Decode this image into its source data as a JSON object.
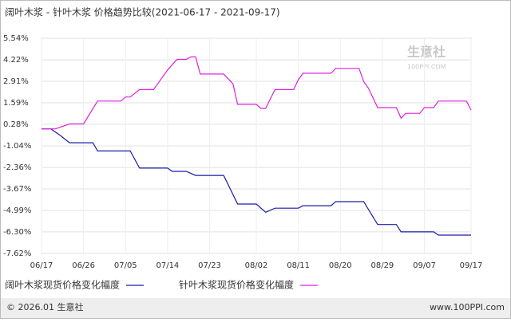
{
  "chart_data": {
    "type": "line",
    "title": "阔叶木浆 - 针叶木浆 价格趋势比较(2021-06-17 - 2021-09-17)",
    "watermark": "生意社",
    "watermark_sub": "100PPI.COM",
    "footer_left": "© 2026.01 生意社",
    "footer_right": "www.100PPI.com",
    "xlim": [
      "06/17",
      "09/17"
    ],
    "xticks": [
      "06/17",
      "06/26",
      "07/05",
      "07/14",
      "07/23",
      "08/02",
      "08/11",
      "08/20",
      "08/29",
      "09/07",
      "09/17"
    ],
    "ylim": [
      -7.62,
      5.54
    ],
    "yticks": [
      {
        "value": 5.54,
        "label": "5.54%"
      },
      {
        "value": 4.22,
        "label": "4.22%"
      },
      {
        "value": 2.91,
        "label": "2.91%"
      },
      {
        "value": 1.59,
        "label": "1.59%"
      },
      {
        "value": 0.28,
        "label": "0.28%"
      },
      {
        "value": -1.04,
        "label": "-1.04%"
      },
      {
        "value": -2.36,
        "label": "-2.36%"
      },
      {
        "value": -3.67,
        "label": "-3.67%"
      },
      {
        "value": -4.99,
        "label": "-4.99%"
      },
      {
        "value": -6.3,
        "label": "-6.30%"
      },
      {
        "value": -7.62,
        "label": "-7.62%"
      }
    ],
    "grid": true,
    "series": [
      {
        "name": "阔叶木浆现货价格变化幅度",
        "color": "#1a1aa6",
        "x": [
          "06/17",
          "06/19",
          "06/21",
          "06/23",
          "06/28",
          "06/29",
          "07/06",
          "07/08",
          "07/14",
          "07/15",
          "07/18",
          "07/20",
          "07/26",
          "07/29",
          "08/02",
          "08/04",
          "08/06",
          "08/11",
          "08/12",
          "08/18",
          "08/19",
          "08/25",
          "08/28",
          "09/01",
          "09/02",
          "09/09",
          "09/10",
          "09/17"
        ],
        "values": [
          0,
          0,
          -0.4,
          -0.85,
          -0.85,
          -1.35,
          -1.35,
          -2.4,
          -2.4,
          -2.6,
          -2.6,
          -2.85,
          -2.85,
          -4.6,
          -4.6,
          -5.1,
          -4.85,
          -4.85,
          -4.7,
          -4.7,
          -4.45,
          -4.45,
          -5.85,
          -5.85,
          -6.3,
          -6.3,
          -6.5,
          -6.5
        ]
      },
      {
        "name": "针叶木浆现货价格变化幅度",
        "color": "#e020e0",
        "x": [
          "06/17",
          "06/20",
          "06/23",
          "06/26",
          "06/29",
          "07/04",
          "07/05",
          "07/06",
          "07/08",
          "07/11",
          "07/12",
          "07/14",
          "07/16",
          "07/18",
          "07/19",
          "07/20",
          "07/21",
          "07/26",
          "07/28",
          "07/29",
          "08/02",
          "08/03",
          "08/04",
          "08/06",
          "08/10",
          "08/11",
          "08/12",
          "08/18",
          "08/19",
          "08/24",
          "08/25",
          "08/26",
          "08/28",
          "09/01",
          "09/02",
          "09/03",
          "09/06",
          "09/07",
          "09/09",
          "09/10",
          "09/16",
          "09/17"
        ],
        "values": [
          0,
          0,
          0.3,
          0.3,
          1.7,
          1.7,
          1.95,
          1.95,
          2.4,
          2.4,
          2.8,
          3.6,
          4.25,
          4.25,
          4.4,
          4.4,
          3.35,
          3.35,
          2.75,
          1.5,
          1.5,
          1.25,
          1.25,
          2.4,
          2.4,
          3.0,
          3.4,
          3.4,
          3.7,
          3.7,
          2.9,
          2.5,
          1.3,
          1.3,
          0.65,
          0.95,
          0.95,
          1.3,
          1.3,
          1.7,
          1.7,
          1.15
        ]
      }
    ]
  }
}
